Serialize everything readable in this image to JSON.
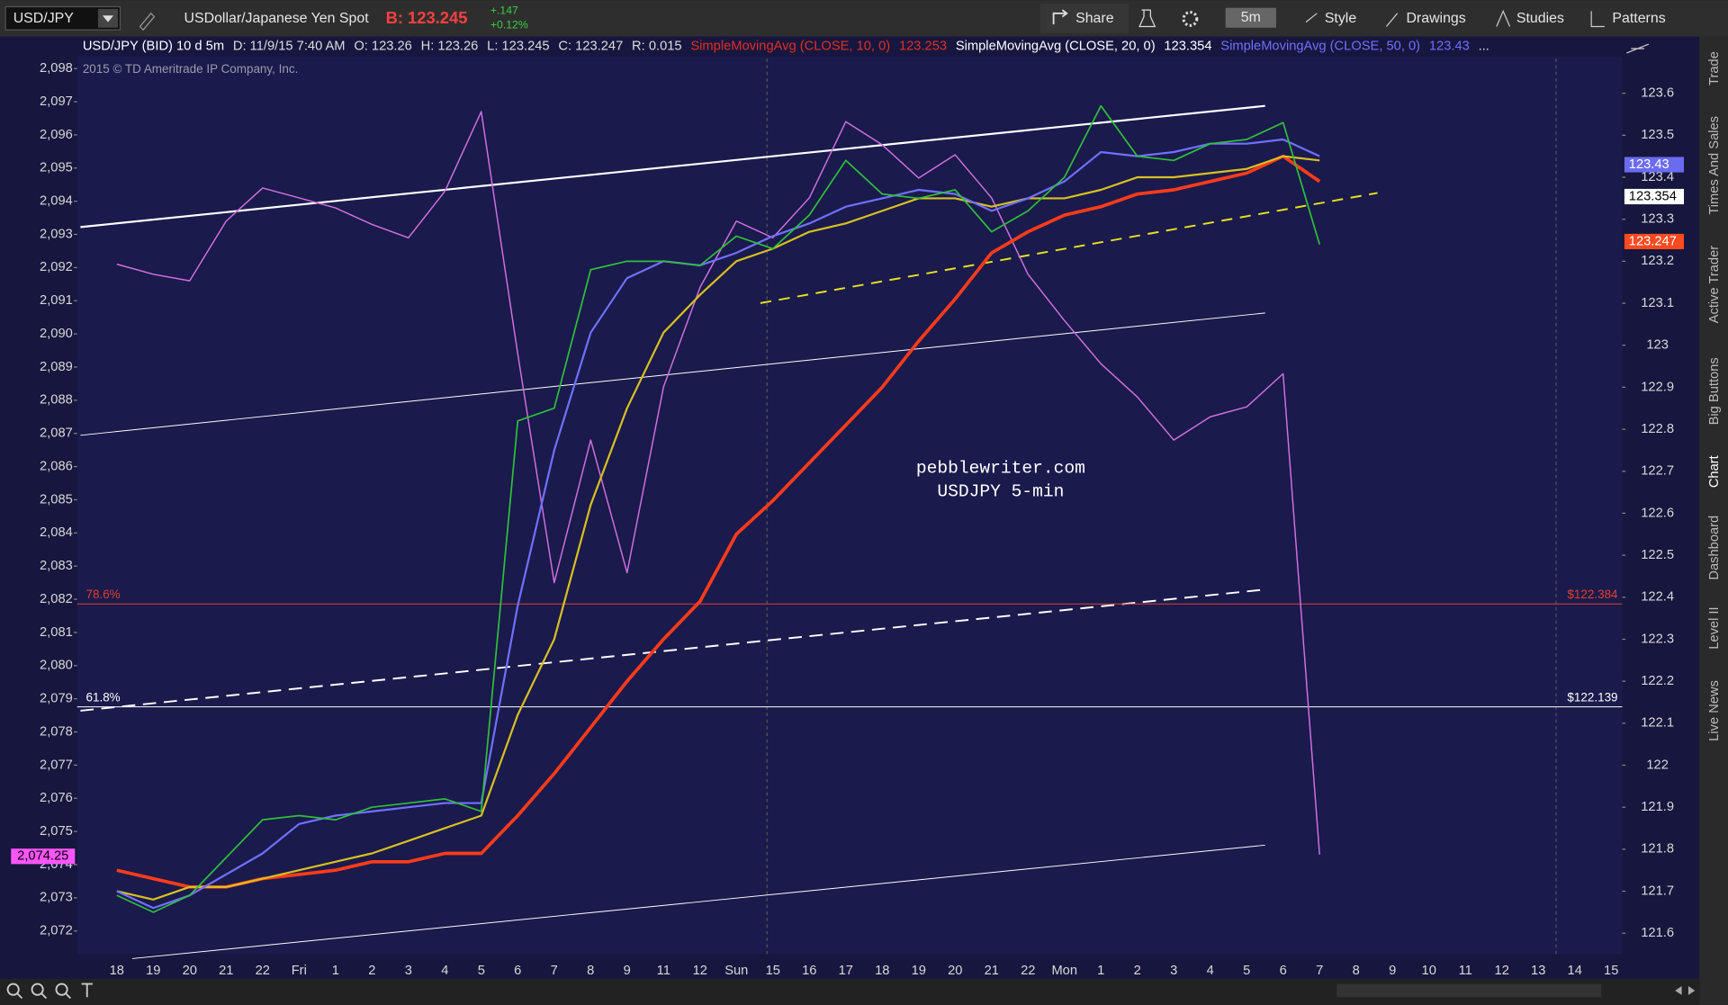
{
  "toolbar": {
    "symbol": "USD/JPY",
    "description": "USDollar/Japanese Yen Spot",
    "bid": "B: 123.245",
    "change": "+.147",
    "change_pct": "+0.12%",
    "share": "Share",
    "interval": "5m",
    "style": "Style",
    "drawings": "Drawings",
    "studies": "Studies",
    "patterns": "Patterns"
  },
  "header": {
    "items": [
      {
        "text": "USD/JPY (BID) 10 d 5m",
        "color": "#ffffff"
      },
      {
        "text": "D: 11/9/15 7:40 AM",
        "color": "#dddddd"
      },
      {
        "text": "O: 123.26",
        "color": "#dddddd"
      },
      {
        "text": "H: 123.26",
        "color": "#dddddd"
      },
      {
        "text": "L: 123.245",
        "color": "#dddddd"
      },
      {
        "text": "C: 123.247",
        "color": "#dddddd"
      },
      {
        "text": "R: 0.015",
        "color": "#dddddd"
      },
      {
        "text": "SimpleMovingAvg (CLOSE, 10, 0)",
        "color": "#e03020"
      },
      {
        "text": "123.253",
        "color": "#e03020"
      },
      {
        "text": "SimpleMovingAvg (CLOSE, 20, 0)",
        "color": "#ffffff"
      },
      {
        "text": "123.354",
        "color": "#ffffff"
      },
      {
        "text": "SimpleMovingAvg (CLOSE, 50, 0)",
        "color": "#7070ff"
      },
      {
        "text": "123.43",
        "color": "#7070ff"
      },
      {
        "text": "...",
        "color": "#dddddd"
      }
    ]
  },
  "side_tabs": [
    "Trade",
    "Times And Sales",
    "Active Trader",
    "Big Buttons",
    "Chart",
    "Dashboard",
    "Level II",
    "Live News"
  ],
  "chart_data": {
    "type": "line",
    "copyright": "2015 © TD Ameritrade IP Company, Inc.",
    "watermark": [
      "pebblewriter.com",
      "USDJPY 5-min"
    ],
    "categories": [
      "18",
      "19",
      "20",
      "21",
      "22",
      "Fri",
      "1",
      "2",
      "3",
      "4",
      "5",
      "6",
      "7",
      "8",
      "9",
      "11",
      "12",
      "Sun",
      "15",
      "16",
      "17",
      "18",
      "19",
      "20",
      "21",
      "22",
      "Mon",
      "1",
      "2",
      "3",
      "4",
      "5",
      "6",
      "7",
      "8",
      "9",
      "10",
      "11",
      "12",
      "13",
      "14",
      "15"
    ],
    "ylim": [
      2071.3,
      2098.9
    ],
    "yticks": [
      {
        "value": 2072,
        "label": "2,072"
      },
      {
        "value": 2073,
        "label": "2,073"
      },
      {
        "value": 2074,
        "label": "2,074"
      },
      {
        "value": 2075,
        "label": "2,075"
      },
      {
        "value": 2076,
        "label": "2,076"
      },
      {
        "value": 2077,
        "label": "2,077"
      },
      {
        "value": 2078,
        "label": "2,078"
      },
      {
        "value": 2079,
        "label": "2,079"
      },
      {
        "value": 2080,
        "label": "2,080"
      },
      {
        "value": 2081,
        "label": "2,081"
      },
      {
        "value": 2082,
        "label": "2,082"
      },
      {
        "value": 2083,
        "label": "2,083"
      },
      {
        "value": 2084,
        "label": "2,084"
      },
      {
        "value": 2085,
        "label": "2,085"
      },
      {
        "value": 2086,
        "label": "2,086"
      },
      {
        "value": 2087,
        "label": "2,087"
      },
      {
        "value": 2088,
        "label": "2,088"
      },
      {
        "value": 2089,
        "label": "2,089"
      },
      {
        "value": 2090,
        "label": "2,090"
      },
      {
        "value": 2091,
        "label": "2,091"
      },
      {
        "value": 2092,
        "label": "2,092"
      },
      {
        "value": 2093,
        "label": "2,093"
      },
      {
        "value": 2094,
        "label": "2,094"
      },
      {
        "value": 2095,
        "label": "2,095"
      },
      {
        "value": 2096,
        "label": "2,096"
      },
      {
        "value": 2097,
        "label": "2,097"
      },
      {
        "value": 2098,
        "label": "2,098"
      }
    ],
    "y2lim": [
      121.55,
      123.73
    ],
    "y2ticks": [
      121.6,
      121.7,
      121.8,
      121.9,
      122,
      122.1,
      122.2,
      122.3,
      122.4,
      122.5,
      122.6,
      122.7,
      122.8,
      122.9,
      123,
      123.1,
      123.2,
      123.3,
      123.4,
      123.5,
      123.6
    ],
    "series": [
      {
        "color": "#d070e0",
        "axis": "y",
        "width": 1.2,
        "values": [
          2092.1,
          2091.8,
          2091.6,
          2093.4,
          2094.4,
          2094.1,
          2093.8,
          2093.3,
          2092.9,
          2094.3,
          2096.7,
          2089.4,
          2082.5,
          2086.8,
          2082.8,
          2088.4,
          2091.4,
          2093.4,
          2092.9,
          2094.1,
          2096.4,
          2095.7,
          2094.7,
          2095.4,
          2094.1,
          2091.8,
          2090.4,
          2089.1,
          2088.1,
          2086.8,
          2087.5,
          2087.8,
          2088.8,
          2074.3,
          null,
          null,
          null,
          null,
          null,
          null,
          null,
          null
        ]
      },
      {
        "color": "#ff3b1a",
        "axis": "y2",
        "width": 3,
        "values": [
          121.75,
          121.73,
          121.71,
          121.71,
          121.73,
          121.74,
          121.75,
          121.77,
          121.77,
          121.79,
          121.79,
          121.88,
          121.98,
          122.09,
          122.2,
          122.3,
          122.39,
          122.55,
          122.63,
          122.72,
          122.81,
          122.9,
          123.01,
          123.11,
          123.22,
          123.27,
          123.31,
          123.33,
          123.36,
          123.37,
          123.39,
          123.41,
          123.45,
          123.39,
          null,
          null,
          null,
          null,
          null,
          null,
          null,
          null
        ]
      },
      {
        "color": "#d8c020",
        "axis": "y2",
        "width": 1.8,
        "values": [
          121.7,
          121.68,
          121.71,
          121.71,
          121.73,
          121.75,
          121.77,
          121.79,
          121.82,
          121.85,
          121.88,
          122.12,
          122.3,
          122.62,
          122.85,
          123.03,
          123.12,
          123.2,
          123.23,
          123.27,
          123.29,
          123.32,
          123.35,
          123.35,
          123.33,
          123.35,
          123.35,
          123.37,
          123.4,
          123.4,
          123.41,
          123.42,
          123.45,
          123.44,
          null,
          null,
          null,
          null,
          null,
          null,
          null,
          null
        ]
      },
      {
        "color": "#7070ff",
        "axis": "y2",
        "width": 1.8,
        "values": [
          121.7,
          121.66,
          121.69,
          121.74,
          121.79,
          121.86,
          121.88,
          121.89,
          121.9,
          121.91,
          121.91,
          122.38,
          122.75,
          123.03,
          123.16,
          123.2,
          123.19,
          123.22,
          123.26,
          123.29,
          123.33,
          123.35,
          123.37,
          123.36,
          123.32,
          123.35,
          123.39,
          123.46,
          123.45,
          123.46,
          123.48,
          123.48,
          123.49,
          123.45,
          null,
          null,
          null,
          null,
          null,
          null,
          null,
          null
        ]
      },
      {
        "color": "#2fbf3a",
        "axis": "y2",
        "width": 1.4,
        "values": [
          121.69,
          121.65,
          121.69,
          121.78,
          121.87,
          121.88,
          121.87,
          121.9,
          121.91,
          121.92,
          121.89,
          122.82,
          122.85,
          123.18,
          123.2,
          123.2,
          123.19,
          123.26,
          123.23,
          123.31,
          123.44,
          123.36,
          123.35,
          123.37,
          123.27,
          123.32,
          123.4,
          123.57,
          123.45,
          123.44,
          123.48,
          123.49,
          123.53,
          123.24,
          null,
          null,
          null,
          null,
          null,
          null,
          null,
          null
        ]
      }
    ],
    "fib_levels": [
      {
        "value": 122.384,
        "pct": "78.6%",
        "label": "$122.384",
        "color": "#e0402a"
      },
      {
        "value": 122.139,
        "pct": "61.8%",
        "label": "$122.139",
        "color": "#ffffff"
      }
    ],
    "price_labels": [
      {
        "value": 123.43,
        "label": "123.43",
        "color": "#6b6bf0",
        "text_color": "#ffffff"
      },
      {
        "value": 123.354,
        "label": "123.354",
        "color": "#ffffff",
        "text_color": "#000000"
      },
      {
        "value": 123.247,
        "label": "123.247",
        "color": "#ff4a20",
        "text_color": "#ffffff"
      }
    ],
    "left_label": {
      "value": 2074.25,
      "label": "2,074.25",
      "color": "#ff55ff"
    }
  }
}
